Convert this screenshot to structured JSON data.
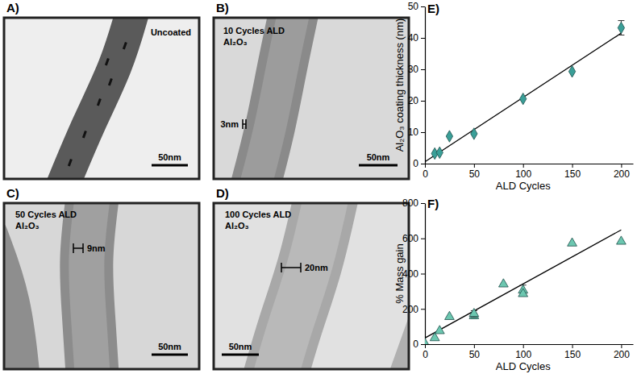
{
  "panels": [
    {
      "label": "A)",
      "caption": [
        "Uncoated"
      ],
      "scale_bar": "50nm"
    },
    {
      "label": "B)",
      "caption": [
        "10 Cycles ALD",
        "Al₂O₃"
      ],
      "measure": "3nm",
      "scale_bar": "50nm"
    },
    {
      "label": "C)",
      "caption": [
        "50 Cycles ALD",
        "Al₂O₃"
      ],
      "measure": "9nm",
      "scale_bar": "50nm"
    },
    {
      "label": "D)",
      "caption": [
        "100 Cycles ALD",
        "Al₂O₃"
      ],
      "measure": "20nm",
      "scale_bar": "50nm"
    }
  ],
  "chart_data": [
    {
      "type": "scatter",
      "label": "E)",
      "x_label": "ALD Cycles",
      "y_label": "Al₂O₃ coating thickness (nm)",
      "xlim": [
        0,
        212
      ],
      "ylim": [
        0,
        50
      ],
      "xticks": [
        0,
        50,
        100,
        150,
        200
      ],
      "yticks": [
        0,
        10,
        20,
        30,
        40,
        50
      ],
      "series": [
        {
          "type": "scatter",
          "marker": "diamond",
          "color": "#3a9f98",
          "x": [
            10,
            15,
            25,
            50,
            100,
            150,
            200
          ],
          "values": [
            3.2,
            3.5,
            8.7,
            9.5,
            20.6,
            29.3,
            43.2
          ],
          "errors": [
            null,
            null,
            null,
            null,
            null,
            null,
            2.3
          ]
        },
        {
          "type": "line",
          "line_style": "solid",
          "color": "#000000",
          "x": [
            0,
            200
          ],
          "values": [
            0.6,
            41.5
          ]
        }
      ]
    },
    {
      "type": "scatter",
      "label": "F)",
      "x_label": "ALD Cycles",
      "y_label": "% Mass gain",
      "xlim": [
        0,
        212
      ],
      "ylim": [
        0,
        800
      ],
      "xticks": [
        0,
        50,
        100,
        150,
        200
      ],
      "yticks": [
        0,
        200,
        400,
        600,
        800
      ],
      "series": [
        {
          "type": "scatter",
          "marker": "triangle",
          "color": "#6cc7b0",
          "x": [
            0,
            10,
            15,
            25,
            50,
            50,
            80,
            100,
            100,
            150,
            200
          ],
          "values": [
            3,
            35,
            75,
            155,
            160,
            172,
            340,
            305,
            285,
            572,
            582
          ],
          "errors": [
            null,
            null,
            null,
            null,
            15,
            18,
            null,
            30,
            null,
            null,
            null
          ]
        },
        {
          "type": "line",
          "line_style": "solid",
          "color": "#000000",
          "x": [
            0,
            200
          ],
          "values": [
            35,
            648
          ]
        }
      ]
    }
  ]
}
